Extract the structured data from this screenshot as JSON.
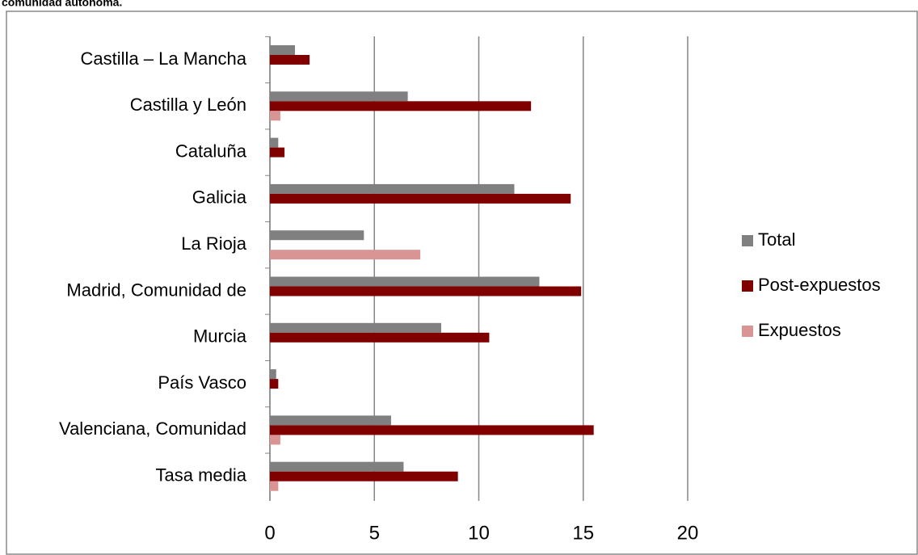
{
  "chart_data": {
    "type": "bar",
    "orientation": "horizontal",
    "title": "comunidad autónoma.",
    "categories": [
      "Castilla – La Mancha",
      "Castilla y León",
      "Cataluña",
      "Galicia",
      "La Rioja",
      "Madrid, Comunidad de",
      "Murcia",
      "País Vasco",
      "Valenciana, Comunidad",
      "Tasa media"
    ],
    "series": [
      {
        "name": "Total",
        "color": "#808080",
        "values": [
          1.2,
          6.6,
          0.4,
          11.7,
          4.5,
          12.9,
          8.2,
          0.3,
          5.8,
          6.4
        ]
      },
      {
        "name": "Post-expuestos",
        "color": "#800000",
        "values": [
          1.9,
          12.5,
          0.7,
          14.4,
          null,
          14.9,
          10.5,
          0.4,
          15.5,
          9.0
        ]
      },
      {
        "name": "Expuestos",
        "color": "#d99594",
        "values": [
          null,
          0.5,
          null,
          null,
          7.2,
          null,
          null,
          null,
          0.5,
          0.4
        ]
      }
    ],
    "xlim": [
      0,
      20
    ],
    "xticks": [
      0,
      5,
      10,
      15,
      20
    ],
    "grid": true,
    "legend": "right"
  }
}
